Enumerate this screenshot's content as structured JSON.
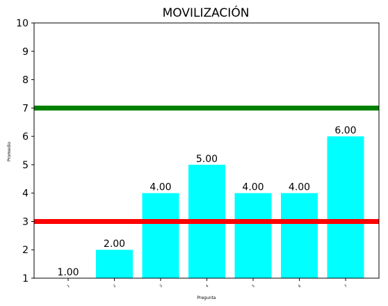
{
  "chart_data": {
    "type": "bar",
    "title": "MOVILIZACIÓN",
    "xlabel": "Pregunta",
    "ylabel": "Promedio",
    "categories": [
      "1",
      "2",
      "3",
      "4",
      "5",
      "6",
      "7"
    ],
    "values": [
      1.0,
      2.0,
      4.0,
      5.0,
      4.0,
      4.0,
      6.0
    ],
    "data_labels": [
      "1.00",
      "2.00",
      "4.00",
      "5.00",
      "4.00",
      "4.00",
      "6.00"
    ],
    "yticks": [
      "1",
      "2",
      "3",
      "4",
      "5",
      "6",
      "7",
      "8",
      "9",
      "10"
    ],
    "ylim": [
      1,
      10
    ],
    "grid": false,
    "reference_lines": [
      {
        "y": 7,
        "color": "#008000"
      },
      {
        "y": 3,
        "color": "#ff0000"
      }
    ],
    "bar_color": "#00ffff"
  }
}
